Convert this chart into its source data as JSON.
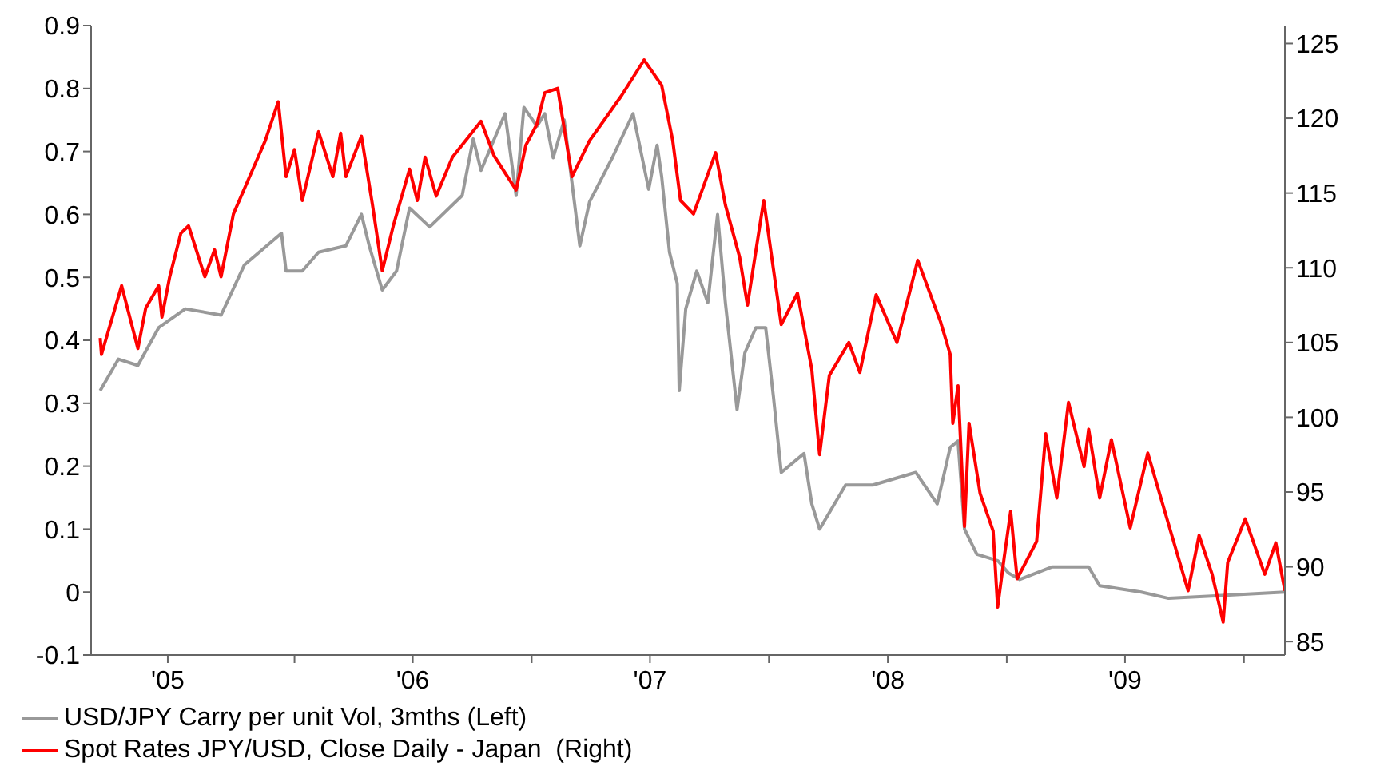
{
  "chart_data": {
    "type": "line",
    "xlim": [
      "2005-02-22",
      "2010-03-05"
    ],
    "xticks": [
      {
        "value": "2005-06-20",
        "label": "'05"
      },
      {
        "value": "2006-01-01",
        "label": null
      },
      {
        "value": "2006-07-02",
        "label": "'06"
      },
      {
        "value": "2007-01-01",
        "label": null
      },
      {
        "value": "2007-07-02",
        "label": "'07"
      },
      {
        "value": "2008-01-01",
        "label": null
      },
      {
        "value": "2008-07-02",
        "label": "'08"
      },
      {
        "value": "2009-01-01",
        "label": null
      },
      {
        "value": "2009-07-02",
        "label": "'09"
      },
      {
        "value": "2010-01-01",
        "label": null
      }
    ],
    "ylim": [
      -0.1,
      0.9
    ],
    "yticks": [
      -0.1,
      0,
      0.1,
      0.2,
      0.3,
      0.4,
      0.5,
      0.6,
      0.7,
      0.8,
      0.9
    ],
    "y2lim": [
      84.1,
      126.2
    ],
    "y2ticks": [
      85,
      90,
      95,
      100,
      105,
      110,
      115,
      120,
      125
    ],
    "grid": false,
    "legend": "bottom left",
    "marker": "none",
    "line_style": "solid",
    "series": [
      {
        "name": "USD/JPY Carry per unit Vol, 3mths (Left)",
        "color": "#999999",
        "x": [
          "2005-03-08",
          "2005-04-05",
          "2005-05-05",
          "2005-06-06",
          "2005-07-17",
          "2005-09-10",
          "2005-10-16",
          "2005-12-12",
          "2005-12-19",
          "2006-01-13",
          "2006-02-07",
          "2006-03-21",
          "2006-04-14",
          "2006-04-26",
          "2006-05-16",
          "2006-06-07",
          "2006-06-27",
          "2006-07-28",
          "2006-09-16",
          "2006-10-03",
          "2006-10-15",
          "2006-11-21",
          "2006-12-08",
          "2006-12-20",
          "2007-01-09",
          "2007-01-21",
          "2007-02-03",
          "2007-02-20",
          "2007-03-16",
          "2007-03-31",
          "2007-05-05",
          "2007-06-06",
          "2007-06-30",
          "2007-07-13",
          "2007-07-20",
          "2007-08-01",
          "2007-08-13",
          "2007-08-16",
          "2007-08-26",
          "2007-09-12",
          "2007-09-29",
          "2007-10-14",
          "2007-10-26",
          "2007-11-13",
          "2007-11-25",
          "2007-12-12",
          "2007-12-27",
          "2008-01-08",
          "2008-01-20",
          "2008-02-24",
          "2008-03-07",
          "2008-03-19",
          "2008-04-28",
          "2008-06-09",
          "2008-08-14",
          "2008-09-16",
          "2008-10-06",
          "2008-10-18",
          "2008-10-28",
          "2008-11-16",
          "2008-12-18",
          "2009-01-04",
          "2009-01-21",
          "2009-03-12",
          "2009-05-07",
          "2009-05-24",
          "2009-07-27",
          "2009-09-07",
          "2010-03-05"
        ],
        "values": [
          0.32,
          0.37,
          0.36,
          0.42,
          0.45,
          0.44,
          0.52,
          0.57,
          0.51,
          0.51,
          0.54,
          0.55,
          0.6,
          0.55,
          0.48,
          0.51,
          0.61,
          0.58,
          0.63,
          0.72,
          0.67,
          0.76,
          0.63,
          0.77,
          0.74,
          0.76,
          0.69,
          0.75,
          0.55,
          0.62,
          0.69,
          0.76,
          0.64,
          0.71,
          0.66,
          0.54,
          0.49,
          0.32,
          0.45,
          0.51,
          0.46,
          0.6,
          0.46,
          0.29,
          0.38,
          0.42,
          0.42,
          0.31,
          0.19,
          0.22,
          0.14,
          0.1,
          0.17,
          0.17,
          0.19,
          0.14,
          0.23,
          0.24,
          0.1,
          0.06,
          0.05,
          0.03,
          0.02,
          0.04,
          0.04,
          0.01,
          0.0,
          -0.01,
          0.0
        ]
      },
      {
        "name": "Spot Rates JPY/USD, Close Daily - Japan  (Right)",
        "color": "#ff0000",
        "axis": "y2",
        "x": [
          "2005-03-08",
          "2005-03-10",
          "2005-04-10",
          "2005-05-05",
          "2005-05-17",
          "2005-06-06",
          "2005-06-11",
          "2005-06-23",
          "2005-07-10",
          "2005-07-22",
          "2005-08-16",
          "2005-08-31",
          "2005-09-10",
          "2005-09-29",
          "2005-10-24",
          "2005-11-17",
          "2005-12-07",
          "2005-12-19",
          "2006-01-01",
          "2006-01-13",
          "2006-02-07",
          "2006-03-01",
          "2006-03-13",
          "2006-03-21",
          "2006-04-14",
          "2006-05-01",
          "2006-05-16",
          "2006-06-02",
          "2006-06-27",
          "2006-07-09",
          "2006-07-21",
          "2006-08-07",
          "2006-09-01",
          "2006-10-15",
          "2006-11-04",
          "2006-12-08",
          "2006-12-23",
          "2007-01-09",
          "2007-01-21",
          "2007-02-10",
          "2007-03-04",
          "2007-03-31",
          "2007-05-19",
          "2007-06-23",
          "2007-07-20",
          "2007-08-06",
          "2007-08-18",
          "2007-09-07",
          "2007-10-11",
          "2007-10-26",
          "2007-11-17",
          "2007-11-29",
          "2007-12-24",
          "2008-01-20",
          "2008-02-14",
          "2008-03-07",
          "2008-03-19",
          "2008-04-03",
          "2008-05-03",
          "2008-05-20",
          "2008-06-14",
          "2008-07-16",
          "2008-08-17",
          "2008-09-03",
          "2008-09-21",
          "2008-10-06",
          "2008-10-10",
          "2008-10-18",
          "2008-10-28",
          "2008-11-04",
          "2008-11-21",
          "2008-12-11",
          "2008-12-18",
          "2008-12-28",
          "2009-01-07",
          "2009-01-17",
          "2009-02-16",
          "2009-03-02",
          "2009-03-19",
          "2009-04-06",
          "2009-04-30",
          "2009-05-07",
          "2009-05-24",
          "2009-06-11",
          "2009-07-10",
          "2009-08-06",
          "2009-09-12",
          "2009-10-07",
          "2009-10-24",
          "2009-11-13",
          "2009-11-30",
          "2009-12-07",
          "2010-01-03",
          "2010-02-02",
          "2010-02-19",
          "2010-03-05"
        ],
        "values": [
          105.3,
          104.2,
          108.8,
          104.6,
          107.3,
          108.8,
          106.7,
          109.4,
          112.3,
          112.8,
          109.4,
          111.2,
          109.4,
          113.6,
          116.1,
          118.5,
          121.1,
          116.1,
          117.9,
          114.5,
          119.1,
          116.1,
          119.0,
          116.1,
          118.8,
          114.2,
          109.8,
          112.8,
          116.6,
          114.5,
          117.4,
          114.8,
          117.4,
          119.8,
          117.5,
          115.2,
          118.2,
          119.6,
          121.7,
          122.0,
          116.1,
          118.5,
          121.5,
          123.9,
          122.2,
          118.5,
          114.5,
          113.6,
          117.7,
          114.2,
          110.7,
          107.5,
          114.5,
          106.2,
          108.3,
          103.2,
          97.5,
          102.8,
          105.0,
          103.0,
          108.2,
          105.0,
          110.5,
          108.5,
          106.4,
          104.2,
          99.6,
          102.1,
          92.7,
          99.6,
          94.9,
          92.4,
          87.3,
          90.6,
          93.7,
          89.2,
          91.7,
          98.9,
          94.6,
          101.0,
          96.7,
          99.2,
          94.6,
          98.5,
          92.6,
          97.6,
          92.1,
          88.4,
          92.1,
          89.5,
          86.3,
          90.3,
          93.2,
          89.5,
          91.6,
          88.4
        ]
      }
    ]
  }
}
